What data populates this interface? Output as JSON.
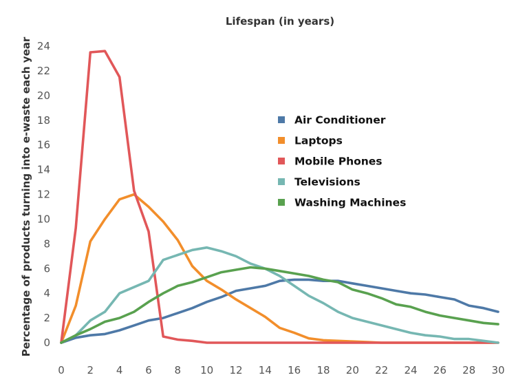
{
  "chart_data": {
    "type": "line",
    "title": "Lifespan (in years)",
    "xlabel": "",
    "ylabel": "Percentage of products turning into e-waste each year",
    "xlim": [
      0,
      30
    ],
    "ylim": [
      0,
      24
    ],
    "x_ticks": [
      "0",
      "2",
      "4",
      "6",
      "8",
      "10",
      "12",
      "14",
      "16",
      "18",
      "20",
      "22",
      "24",
      "26",
      "28",
      "30"
    ],
    "y_ticks": [
      "0",
      "2",
      "4",
      "6",
      "8",
      "10",
      "12",
      "14",
      "16",
      "18",
      "20",
      "22",
      "24"
    ],
    "grid": false,
    "legend_position": "right",
    "x": [
      0,
      1,
      2,
      3,
      4,
      5,
      6,
      7,
      8,
      9,
      10,
      11,
      12,
      13,
      14,
      15,
      16,
      17,
      18,
      19,
      20,
      21,
      22,
      23,
      24,
      25,
      26,
      27,
      28,
      29,
      30
    ],
    "series": [
      {
        "name": "Air Conditioner",
        "color": "#4e79a7",
        "values": [
          0,
          0.4,
          0.6,
          0.7,
          1.0,
          1.4,
          1.8,
          2.0,
          2.4,
          2.8,
          3.3,
          3.7,
          4.2,
          4.4,
          4.6,
          5.0,
          5.1,
          5.1,
          5.0,
          5.0,
          4.8,
          4.6,
          4.4,
          4.2,
          4.0,
          3.9,
          3.7,
          3.5,
          3.0,
          2.8,
          2.5
        ]
      },
      {
        "name": "Laptops",
        "color": "#f28e2b",
        "values": [
          0,
          3.0,
          8.2,
          10.0,
          11.6,
          12.0,
          11.0,
          9.8,
          8.3,
          6.2,
          5.0,
          4.3,
          3.5,
          2.8,
          2.1,
          1.2,
          0.8,
          0.35,
          0.2,
          0.15,
          0.1,
          0.05,
          0,
          0,
          0,
          0,
          0,
          0,
          0,
          0,
          0
        ]
      },
      {
        "name": "Mobile Phones",
        "color": "#e15759",
        "values": [
          0,
          9.3,
          23.5,
          23.6,
          21.5,
          12.3,
          9.0,
          0.5,
          0.25,
          0.15,
          0,
          0,
          0,
          0,
          0,
          0,
          0,
          0,
          0,
          0,
          0,
          0,
          0,
          0,
          0,
          0,
          0,
          0,
          0,
          0,
          0
        ]
      },
      {
        "name": "Televisions",
        "color": "#76b7b2",
        "values": [
          0,
          0.6,
          1.8,
          2.5,
          4.0,
          4.5,
          5.0,
          6.7,
          7.1,
          7.5,
          7.7,
          7.4,
          7.0,
          6.4,
          6.0,
          5.4,
          4.6,
          3.8,
          3.2,
          2.5,
          2.0,
          1.7,
          1.4,
          1.1,
          0.8,
          0.6,
          0.5,
          0.3,
          0.3,
          0.15,
          0
        ]
      },
      {
        "name": "Washing Machines",
        "color": "#59a14f",
        "values": [
          0,
          0.6,
          1.1,
          1.7,
          2.0,
          2.5,
          3.3,
          4.0,
          4.6,
          4.9,
          5.3,
          5.7,
          5.9,
          6.1,
          6.0,
          5.8,
          5.6,
          5.4,
          5.1,
          4.9,
          4.3,
          4.0,
          3.6,
          3.1,
          2.9,
          2.5,
          2.2,
          2.0,
          1.8,
          1.6,
          1.5
        ]
      }
    ]
  }
}
